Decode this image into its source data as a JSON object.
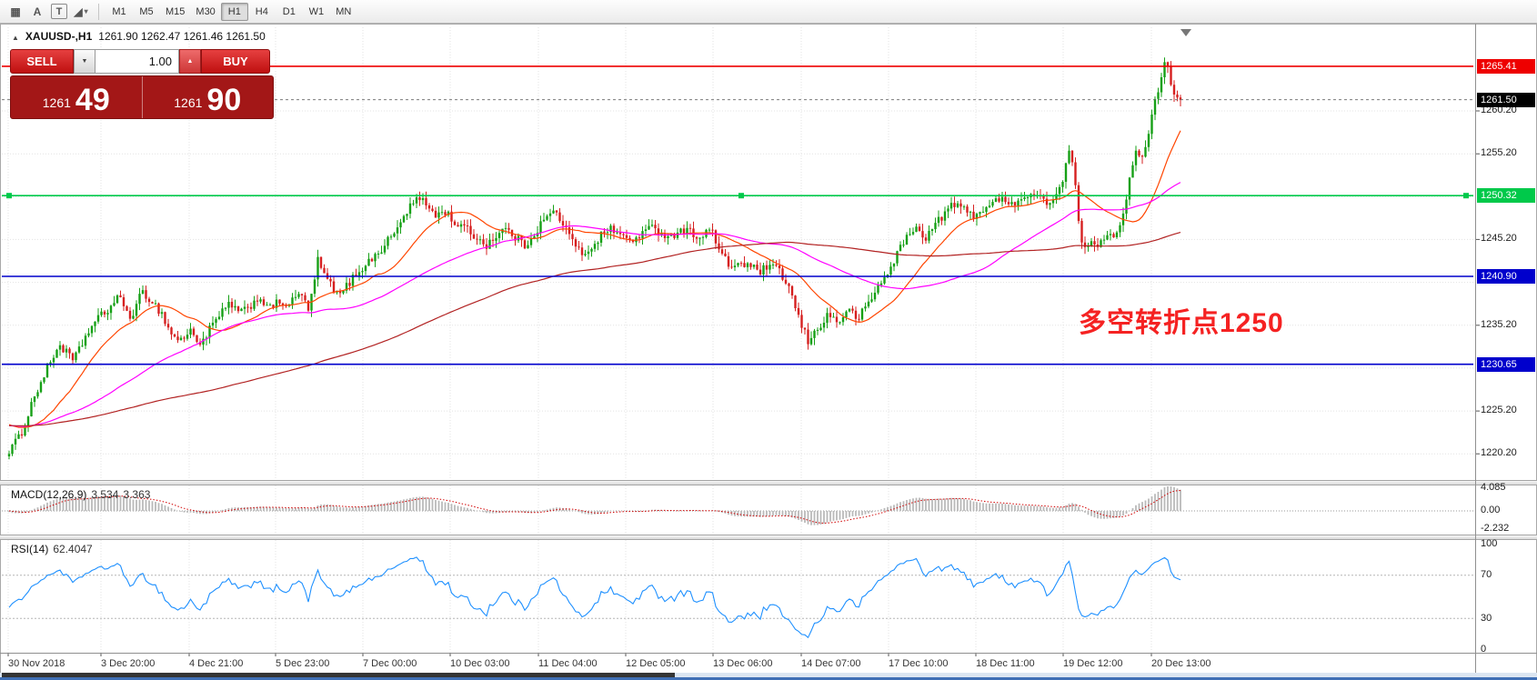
{
  "toolbar": {
    "icons": [
      {
        "name": "grid-tool-icon",
        "glyph": "▦",
        "boxed": false,
        "caret": false
      },
      {
        "name": "cursor-tool-icon",
        "glyph": "A",
        "boxed": false,
        "caret": false
      },
      {
        "name": "text-tool-icon",
        "glyph": "T",
        "boxed": true,
        "caret": false
      },
      {
        "name": "shapes-tool-icon",
        "glyph": "◢",
        "boxed": false,
        "caret": true
      }
    ],
    "timeframes": [
      {
        "label": "M1",
        "active": false
      },
      {
        "label": "M5",
        "active": false
      },
      {
        "label": "M15",
        "active": false
      },
      {
        "label": "M30",
        "active": false
      },
      {
        "label": "H1",
        "active": true
      },
      {
        "label": "H4",
        "active": false
      },
      {
        "label": "D1",
        "active": false
      },
      {
        "label": "W1",
        "active": false
      },
      {
        "label": "MN",
        "active": false
      }
    ]
  },
  "chart_header": {
    "collapse_icon": "▲",
    "symbol_timeframe": "XAUUSD-,H1",
    "ohlc_text": "1261.90 1262.47 1261.46 1261.50"
  },
  "trade_panel": {
    "sell_label": "SELL",
    "buy_label": "BUY",
    "volume_value": "1.00",
    "down_icon": "▼",
    "up_icon": "▲",
    "bid": {
      "prefix": "1261",
      "big": "49"
    },
    "ask": {
      "prefix": "1261",
      "big": "90"
    }
  },
  "annotation": {
    "text": "多空转折点1250",
    "color": "#f52222"
  },
  "price_scale": {
    "ticks": [
      {
        "label": "1260.20",
        "price": 1260.2
      },
      {
        "label": "1255.20",
        "price": 1255.2
      },
      {
        "label": "1245.20",
        "price": 1245.2
      },
      {
        "label": "1235.20",
        "price": 1235.2
      },
      {
        "label": "1225.20",
        "price": 1225.2
      },
      {
        "label": "1220.20",
        "price": 1220.2
      }
    ],
    "tags": [
      {
        "label": "1265.41",
        "price": 1265.41,
        "bg": "#ee0000",
        "fg": "#ffffff",
        "name": "resistance-line-tag"
      },
      {
        "label": "1261.50",
        "price": 1261.5,
        "bg": "#000000",
        "fg": "#ffffff",
        "name": "current-price-tag"
      },
      {
        "label": "1250.32",
        "price": 1250.32,
        "bg": "#00c94a",
        "fg": "#ffffff",
        "name": "pivot-line-tag"
      },
      {
        "label": "1240.90",
        "price": 1240.9,
        "bg": "#0000cc",
        "fg": "#ffffff",
        "name": "support-line-tag"
      },
      {
        "label": "1230.65",
        "price": 1230.65,
        "bg": "#0000cc",
        "fg": "#ffffff",
        "name": "support2-line-tag"
      }
    ]
  },
  "macd_panel": {
    "title": "MACD(12,26,9)",
    "value_main": "3.534",
    "value_signal": "3.363",
    "scale": [
      "4.085",
      "0.00",
      "-2.232"
    ]
  },
  "rsi_panel": {
    "title": "RSI(14)",
    "value": "62.4047",
    "scale": [
      "100",
      "70",
      "30",
      "0"
    ]
  },
  "chart_data": {
    "type": "candlestick",
    "symbol": "XAUUSD-",
    "timeframe": "H1",
    "current": {
      "open": 1261.9,
      "high": 1262.47,
      "low": 1261.46,
      "close": 1261.5
    },
    "y_range": [
      1217.0,
      1270.0
    ],
    "y_tick_step": 5,
    "grid": true,
    "up_color": "#16a016",
    "down_color": "#d62020",
    "horizontal_lines": [
      {
        "price": 1265.41,
        "color": "#ee0000"
      },
      {
        "price": 1250.32,
        "color": "#00c94a"
      },
      {
        "price": 1240.9,
        "color": "#0000cc"
      },
      {
        "price": 1230.65,
        "color": "#0000cc"
      }
    ],
    "ma": [
      {
        "period": 20,
        "color": "#ff4500"
      },
      {
        "period": 60,
        "color": "#ff00ff"
      },
      {
        "period": 150,
        "color": "#b22222"
      }
    ],
    "macd": {
      "fast": 12,
      "slow": 26,
      "signal": 9,
      "hist_color": "#b9b9b9",
      "signal_color": "#d00000",
      "scale_max": 4.085,
      "scale_min": -2.232
    },
    "rsi": {
      "period": 14,
      "color": "#1e90ff",
      "levels": [
        70,
        30
      ]
    },
    "x_labels": [
      "30 Nov 2018",
      "3 Dec 20:00",
      "4 Dec 21:00",
      "5 Dec 23:00",
      "7 Dec 00:00",
      "10 Dec 03:00",
      "11 Dec 04:00",
      "12 Dec 05:00",
      "13 Dec 06:00",
      "14 Dec 07:00",
      "17 Dec 10:00",
      "18 Dec 11:00",
      "19 Dec 12:00",
      "20 Dec 13:00"
    ],
    "price_path": [
      [
        9,
        1220.5
      ],
      [
        22,
        1222.2
      ],
      [
        38,
        1227
      ],
      [
        54,
        1230.5
      ],
      [
        65,
        1233
      ],
      [
        81,
        1231
      ],
      [
        97,
        1234.5
      ],
      [
        108,
        1236
      ],
      [
        119,
        1237
      ],
      [
        129,
        1238.5
      ],
      [
        146,
        1236
      ],
      [
        156,
        1239.2
      ],
      [
        167,
        1238
      ],
      [
        178,
        1236.5
      ],
      [
        189,
        1234
      ],
      [
        199,
        1233.5
      ],
      [
        210,
        1234.5
      ],
      [
        221,
        1233
      ],
      [
        232,
        1235
      ],
      [
        243,
        1236.5
      ],
      [
        253,
        1237.8
      ],
      [
        264,
        1236.5
      ],
      [
        275,
        1237.5
      ],
      [
        286,
        1238.5
      ],
      [
        296,
        1237
      ],
      [
        307,
        1238
      ],
      [
        318,
        1237.5
      ],
      [
        329,
        1239
      ],
      [
        340,
        1237
      ],
      [
        350,
        1243
      ],
      [
        356,
        1241
      ],
      [
        367,
        1239.5
      ],
      [
        372,
        1238.5
      ],
      [
        383,
        1240
      ],
      [
        394,
        1241.5
      ],
      [
        404,
        1242.5
      ],
      [
        415,
        1243.5
      ],
      [
        426,
        1245
      ],
      [
        437,
        1246.5
      ],
      [
        447,
        1248.5
      ],
      [
        458,
        1250
      ],
      [
        469,
        1249.3
      ],
      [
        480,
        1248
      ],
      [
        490,
        1248.5
      ],
      [
        501,
        1247
      ],
      [
        512,
        1246.5
      ],
      [
        523,
        1245.5
      ],
      [
        534,
        1244.5
      ],
      [
        544,
        1245.5
      ],
      [
        555,
        1246.5
      ],
      [
        566,
        1245.5
      ],
      [
        577,
        1244.5
      ],
      [
        588,
        1246
      ],
      [
        598,
        1247.5
      ],
      [
        609,
        1248.5
      ],
      [
        620,
        1247
      ],
      [
        631,
        1244.5
      ],
      [
        641,
        1243.5
      ],
      [
        652,
        1244.5
      ],
      [
        663,
        1246
      ],
      [
        674,
        1246.5
      ],
      [
        684,
        1245.5
      ],
      [
        695,
        1245
      ],
      [
        706,
        1246
      ],
      [
        717,
        1246.5
      ],
      [
        728,
        1246
      ],
      [
        738,
        1245.5
      ],
      [
        749,
        1246.5
      ],
      [
        760,
        1246
      ],
      [
        771,
        1245.5
      ],
      [
        782,
        1246.5
      ],
      [
        792,
        1243.5
      ],
      [
        803,
        1242
      ],
      [
        814,
        1242.5
      ],
      [
        825,
        1242
      ],
      [
        835,
        1241.5
      ],
      [
        846,
        1242
      ],
      [
        857,
        1241.5
      ],
      [
        868,
        1239.5
      ],
      [
        878,
        1236
      ],
      [
        889,
        1233.2
      ],
      [
        900,
        1235
      ],
      [
        911,
        1236.5
      ],
      [
        921,
        1235.5
      ],
      [
        932,
        1237
      ],
      [
        943,
        1236
      ],
      [
        954,
        1237.5
      ],
      [
        964,
        1239.5
      ],
      [
        975,
        1241
      ],
      [
        986,
        1243.5
      ],
      [
        997,
        1245.5
      ],
      [
        1008,
        1246.5
      ],
      [
        1018,
        1245.5
      ],
      [
        1029,
        1247
      ],
      [
        1040,
        1248.5
      ],
      [
        1051,
        1249.5
      ],
      [
        1061,
        1248.5
      ],
      [
        1072,
        1248
      ],
      [
        1083,
        1249
      ],
      [
        1094,
        1249.5
      ],
      [
        1105,
        1250
      ],
      [
        1115,
        1249.5
      ],
      [
        1126,
        1250
      ],
      [
        1137,
        1250.5
      ],
      [
        1148,
        1249.5
      ],
      [
        1159,
        1250
      ],
      [
        1169,
        1252
      ],
      [
        1175,
        1255.5
      ],
      [
        1180,
        1254
      ],
      [
        1186,
        1247
      ],
      [
        1191,
        1244.5
      ],
      [
        1196,
        1244
      ],
      [
        1202,
        1245
      ],
      [
        1207,
        1244.5
      ],
      [
        1212,
        1245.5
      ],
      [
        1218,
        1246
      ],
      [
        1223,
        1245.5
      ],
      [
        1229,
        1246.5
      ],
      [
        1234,
        1248
      ],
      [
        1239,
        1250.5
      ],
      [
        1245,
        1253.5
      ],
      [
        1250,
        1255.5
      ],
      [
        1256,
        1254.5
      ],
      [
        1261,
        1257
      ],
      [
        1266,
        1259.5
      ],
      [
        1272,
        1262
      ],
      [
        1277,
        1264.5
      ],
      [
        1282,
        1266.5
      ],
      [
        1288,
        1263.5
      ],
      [
        1293,
        1261.5
      ],
      [
        1299,
        1261.5
      ]
    ]
  }
}
